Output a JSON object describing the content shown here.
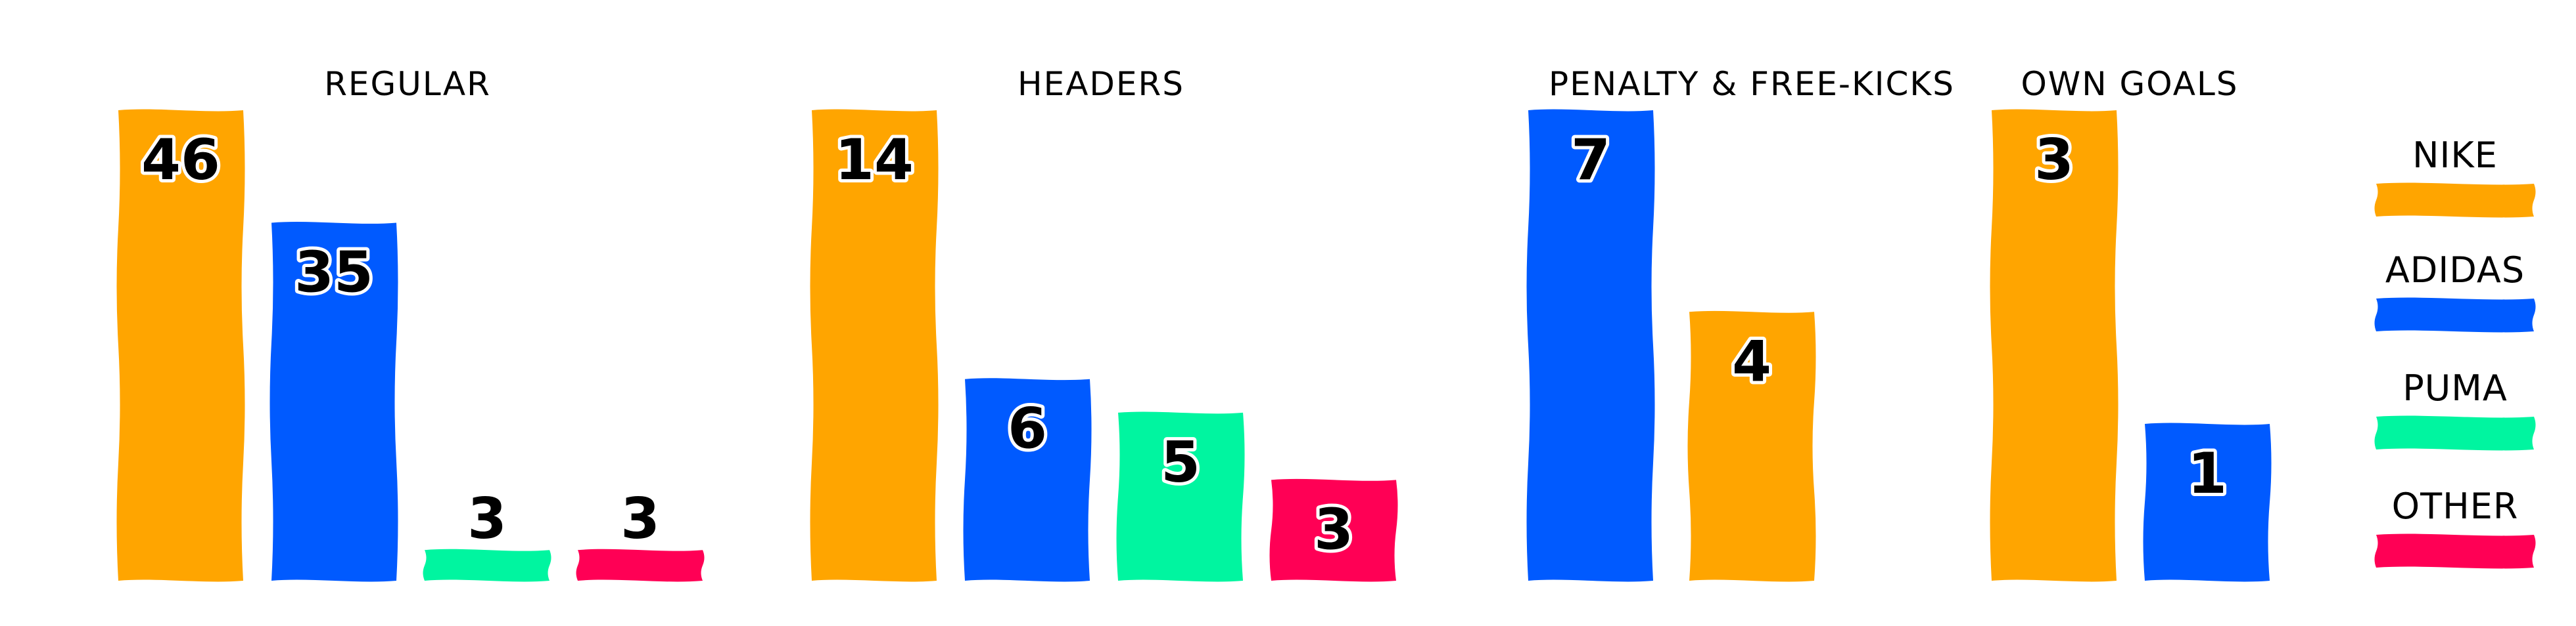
{
  "chart_data": {
    "type": "bar",
    "ylim": [
      0,
      47
    ],
    "grid": false,
    "legend": {
      "placement": "right",
      "entries": [
        {
          "name": "NIKE",
          "color": "#FFA500"
        },
        {
          "name": "ADIDAS",
          "color": "#005AFF"
        },
        {
          "name": "PUMA",
          "color": "#00F5A0"
        },
        {
          "name": "OTHER",
          "color": "#FF0055"
        }
      ]
    },
    "panels": [
      {
        "title": "REGULAR",
        "bars": [
          {
            "brand": "NIKE",
            "value": 46,
            "color": "#FFA500"
          },
          {
            "brand": "ADIDAS",
            "value": 35,
            "color": "#005AFF"
          },
          {
            "brand": "PUMA",
            "value": 3,
            "color": "#00F5A0"
          },
          {
            "brand": "OTHER",
            "value": 3,
            "color": "#FF0055"
          }
        ]
      },
      {
        "title": "HEADERS",
        "bars": [
          {
            "brand": "NIKE",
            "value": 14,
            "color": "#FFA500"
          },
          {
            "brand": "ADIDAS",
            "value": 6,
            "color": "#005AFF"
          },
          {
            "brand": "PUMA",
            "value": 5,
            "color": "#00F5A0"
          },
          {
            "brand": "OTHER",
            "value": 3,
            "color": "#FF0055"
          }
        ]
      },
      {
        "title": "PENALTY & FREE-KICKS",
        "bars": [
          {
            "brand": "ADIDAS",
            "value": 7,
            "color": "#005AFF"
          },
          {
            "brand": "NIKE",
            "value": 4,
            "color": "#FFA500"
          }
        ]
      },
      {
        "title": "OWN GOALS",
        "bars": [
          {
            "brand": "NIKE",
            "value": 3,
            "color": "#FFA500"
          },
          {
            "brand": "ADIDAS",
            "value": 1,
            "color": "#005AFF"
          }
        ]
      }
    ]
  }
}
